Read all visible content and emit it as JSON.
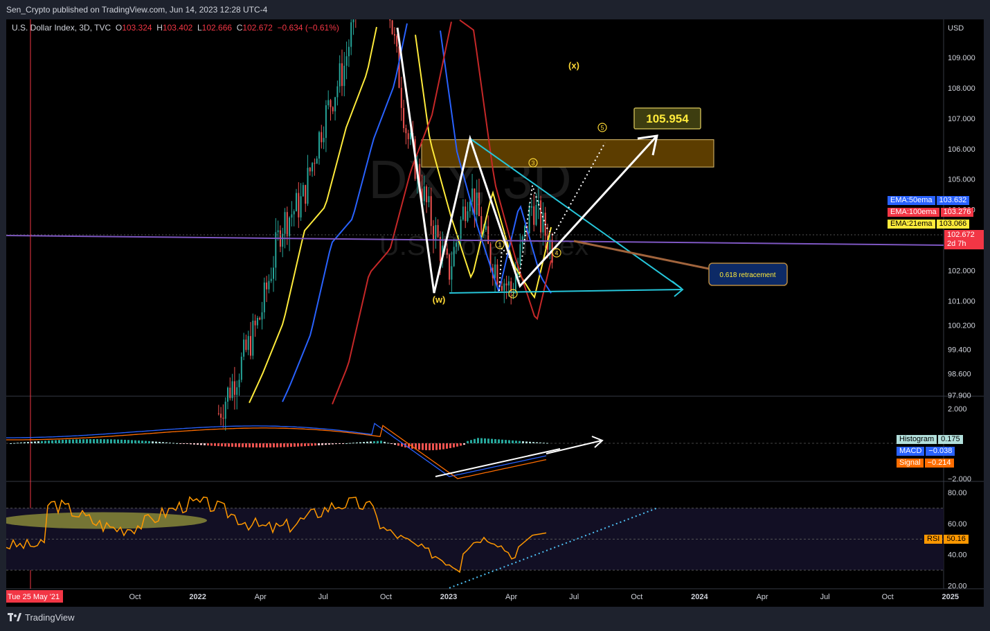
{
  "header": {
    "published": "Sen_Crypto published on TradingView.com, Jun 14, 2023 12:28 UTC-4"
  },
  "footer": {
    "brand": "TradingView"
  },
  "legend": {
    "symbol": "U.S. Dollar Index, 3D, TVC",
    "o_label": "O",
    "o_value": "103.324",
    "h_label": "H",
    "h_value": "103.402",
    "l_label": "L",
    "l_value": "102.666",
    "c_label": "C",
    "c_value": "102.672",
    "change": "−0.634 (−0.61%)"
  },
  "watermark": {
    "ticker": "DXY, 3D",
    "name": "U.S. Dollar Index"
  },
  "price_axis": {
    "currency": "USD",
    "ticks": [
      "109.000",
      "108.000",
      "107.000",
      "106.000",
      "105.000",
      "104.000",
      "102.000",
      "101.000",
      "100.200",
      "99.400",
      "98.600",
      "97.900"
    ]
  },
  "ema_tags": [
    {
      "name": "EMA:50ema",
      "value": "103.632",
      "color": "#2962ff",
      "text_color": "#ffffff"
    },
    {
      "name": "EMA:100ema",
      "value": "103.276",
      "color": "#f23645",
      "text_color": "#ffffff"
    },
    {
      "name": "EMA:21ema",
      "value": "103.066",
      "color": "#ffeb3b",
      "text_color": "#000000"
    }
  ],
  "last_price": {
    "value": "102.672",
    "countdown": "2d 7h",
    "color": "#f23645"
  },
  "macd_panel": {
    "ticks": [
      "2.000",
      "−2.000"
    ],
    "tags": [
      {
        "name": "Histogram",
        "value": "0.175",
        "color": "#b2dfdb",
        "text_color": "#000000"
      },
      {
        "name": "MACD",
        "value": "−0.038",
        "color": "#2962ff",
        "text_color": "#ffffff"
      },
      {
        "name": "Signal",
        "value": "−0.214",
        "color": "#ff6d00",
        "text_color": "#ffffff"
      }
    ]
  },
  "rsi_panel": {
    "ticks": [
      "80.00",
      "60.00",
      "40.00",
      "20.00"
    ],
    "tag": {
      "name": "RSI",
      "value": "50.16",
      "color": "#ff9800",
      "text_color": "#000000"
    }
  },
  "time_axis": {
    "labels": [
      "Oct",
      "2022",
      "Apr",
      "Jul",
      "Oct",
      "2023",
      "Apr",
      "Jul",
      "Oct",
      "2024",
      "Apr",
      "Jul",
      "Oct",
      "2025"
    ],
    "cursor_label": "Tue 25 May '21"
  },
  "annotations": {
    "target_label": "105.954",
    "retracement_label": "0.618 retracement",
    "wave_w": "(w)",
    "wave_x": "(x)",
    "wave_numbers": [
      "1",
      "2",
      "3",
      "4",
      "5"
    ]
  },
  "chart_data": [
    {
      "type": "candlestick",
      "title": "U.S. Dollar Index, 3D, TVC",
      "ylabel": "USD",
      "ylim": [
        97.5,
        109.8
      ],
      "x": [
        "2021-05",
        "2021-10",
        "2022-01",
        "2022-04",
        "2022-07",
        "2022-10",
        "2023-01",
        "2023-04",
        "2023-07",
        "2023-10",
        "2024-01",
        "2024-04",
        "2024-07",
        "2024-10",
        "2025-01"
      ],
      "close_path": [
        {
          "date": "2022-02",
          "value": 97.3
        },
        {
          "date": "2022-03",
          "value": 98.8
        },
        {
          "date": "2022-04",
          "value": 100.5
        },
        {
          "date": "2022-05",
          "value": 103.5
        },
        {
          "date": "2022-06",
          "value": 104.3
        },
        {
          "date": "2022-07",
          "value": 106.9
        },
        {
          "date": "2022-08",
          "value": 108.7
        },
        {
          "date": "2022-09",
          "value": 112.0
        },
        {
          "date": "2022-10",
          "value": 111.5
        },
        {
          "date": "2022-11",
          "value": 106.5
        },
        {
          "date": "2022-12",
          "value": 104.0
        },
        {
          "date": "2023-01",
          "value": 101.9
        },
        {
          "date": "2023-02",
          "value": 104.8
        },
        {
          "date": "2023-03",
          "value": 102.4
        },
        {
          "date": "2023-04",
          "value": 101.3
        },
        {
          "date": "2023-05",
          "value": 104.2
        },
        {
          "date": "2023-06",
          "value": 102.672
        }
      ],
      "ema": [
        {
          "name": "EMA:21ema",
          "last": 103.066,
          "color": "#ffeb3b"
        },
        {
          "name": "EMA:50ema",
          "last": 103.632,
          "color": "#2962ff"
        },
        {
          "name": "EMA:100ema",
          "last": 103.276,
          "color": "#f23645"
        }
      ],
      "resistance_zone": [
        105.4,
        106.3
      ],
      "projection_target": 105.954,
      "horizontal_line": 102.5
    },
    {
      "type": "line",
      "title": "MACD",
      "ylim": [
        -2.2,
        2.2
      ],
      "series": [
        {
          "name": "MACD",
          "last": -0.038,
          "color": "#2962ff"
        },
        {
          "name": "Signal",
          "last": -0.214,
          "color": "#ff6d00"
        },
        {
          "name": "Histogram",
          "last": 0.175,
          "color": "#26a69a"
        }
      ]
    },
    {
      "type": "line",
      "title": "RSI",
      "ylim": [
        18,
        85
      ],
      "levels": [
        70,
        50,
        30
      ],
      "series": [
        {
          "name": "RSI",
          "last": 50.16,
          "color": "#ff9800"
        }
      ]
    }
  ]
}
